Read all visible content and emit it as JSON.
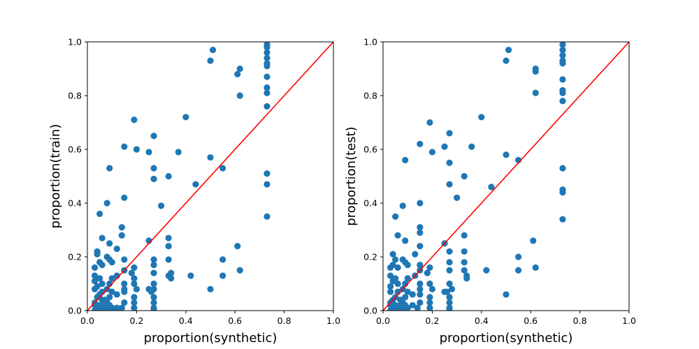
{
  "chart_data": [
    {
      "type": "scatter",
      "xlabel": "proportion(synthetic)",
      "ylabel": "proportion(train)",
      "xlim": [
        0,
        1
      ],
      "ylim": [
        0,
        1
      ],
      "xticks": [
        "0.0",
        "0.2",
        "0.4",
        "0.6",
        "0.8",
        "1.0"
      ],
      "yticks": [
        "0.0",
        "0.2",
        "0.4",
        "0.6",
        "0.8",
        "1.0"
      ],
      "grid": false,
      "reference_line": {
        "from": [
          0,
          0
        ],
        "to": [
          1,
          1
        ],
        "color": "#ff0000"
      },
      "marker_color": "#1f77b4",
      "points": [
        [
          0.73,
          0.99
        ],
        [
          0.73,
          0.98
        ],
        [
          0.73,
          0.96
        ],
        [
          0.73,
          0.94
        ],
        [
          0.73,
          0.92
        ],
        [
          0.73,
          0.91
        ],
        [
          0.73,
          0.87
        ],
        [
          0.73,
          0.83
        ],
        [
          0.73,
          0.81
        ],
        [
          0.73,
          0.76
        ],
        [
          0.73,
          0.51
        ],
        [
          0.73,
          0.47
        ],
        [
          0.73,
          0.35
        ],
        [
          0.51,
          0.97
        ],
        [
          0.5,
          0.93
        ],
        [
          0.62,
          0.9
        ],
        [
          0.61,
          0.88
        ],
        [
          0.62,
          0.8
        ],
        [
          0.19,
          0.71
        ],
        [
          0.4,
          0.72
        ],
        [
          0.27,
          0.65
        ],
        [
          0.15,
          0.61
        ],
        [
          0.2,
          0.6
        ],
        [
          0.25,
          0.59
        ],
        [
          0.37,
          0.59
        ],
        [
          0.5,
          0.57
        ],
        [
          0.09,
          0.53
        ],
        [
          0.27,
          0.53
        ],
        [
          0.55,
          0.53
        ],
        [
          0.27,
          0.49
        ],
        [
          0.33,
          0.5
        ],
        [
          0.44,
          0.47
        ],
        [
          0.15,
          0.42
        ],
        [
          0.08,
          0.4
        ],
        [
          0.3,
          0.39
        ],
        [
          0.05,
          0.36
        ],
        [
          0.14,
          0.31
        ],
        [
          0.14,
          0.28
        ],
        [
          0.06,
          0.27
        ],
        [
          0.09,
          0.25
        ],
        [
          0.25,
          0.26
        ],
        [
          0.33,
          0.27
        ],
        [
          0.33,
          0.24
        ],
        [
          0.61,
          0.24
        ],
        [
          0.12,
          0.23
        ],
        [
          0.04,
          0.22
        ],
        [
          0.04,
          0.21
        ],
        [
          0.08,
          0.2
        ],
        [
          0.09,
          0.19
        ],
        [
          0.05,
          0.18
        ],
        [
          0.15,
          0.19
        ],
        [
          0.27,
          0.19
        ],
        [
          0.33,
          0.19
        ],
        [
          0.55,
          0.19
        ],
        [
          0.06,
          0.17
        ],
        [
          0.1,
          0.18
        ],
        [
          0.27,
          0.17
        ],
        [
          0.03,
          0.16
        ],
        [
          0.19,
          0.16
        ],
        [
          0.15,
          0.15
        ],
        [
          0.18,
          0.14
        ],
        [
          0.27,
          0.14
        ],
        [
          0.33,
          0.13
        ],
        [
          0.34,
          0.14
        ],
        [
          0.34,
          0.12
        ],
        [
          0.42,
          0.13
        ],
        [
          0.62,
          0.15
        ],
        [
          0.55,
          0.13
        ],
        [
          0.03,
          0.13
        ],
        [
          0.05,
          0.12
        ],
        [
          0.1,
          0.12
        ],
        [
          0.12,
          0.13
        ],
        [
          0.19,
          0.12
        ],
        [
          0.03,
          0.11
        ],
        [
          0.06,
          0.1
        ],
        [
          0.09,
          0.1
        ],
        [
          0.15,
          0.1
        ],
        [
          0.19,
          0.1
        ],
        [
          0.27,
          0.1
        ],
        [
          0.04,
          0.09
        ],
        [
          0.08,
          0.08
        ],
        [
          0.15,
          0.08
        ],
        [
          0.2,
          0.08
        ],
        [
          0.25,
          0.08
        ],
        [
          0.27,
          0.08
        ],
        [
          0.26,
          0.07
        ],
        [
          0.5,
          0.08
        ],
        [
          0.03,
          0.08
        ],
        [
          0.06,
          0.07
        ],
        [
          0.1,
          0.07
        ],
        [
          0.15,
          0.07
        ],
        [
          0.05,
          0.06
        ],
        [
          0.12,
          0.06
        ],
        [
          0.09,
          0.05
        ],
        [
          0.19,
          0.05
        ],
        [
          0.27,
          0.05
        ],
        [
          0.04,
          0.05
        ],
        [
          0.06,
          0.04
        ],
        [
          0.07,
          0.04
        ],
        [
          0.08,
          0.03
        ],
        [
          0.03,
          0.03
        ],
        [
          0.15,
          0.03
        ],
        [
          0.19,
          0.03
        ],
        [
          0.27,
          0.03
        ],
        [
          0.03,
          0.02
        ],
        [
          0.05,
          0.02
        ],
        [
          0.07,
          0.02
        ],
        [
          0.09,
          0.02
        ],
        [
          0.12,
          0.01
        ],
        [
          0.14,
          0.01
        ],
        [
          0.04,
          0.01
        ],
        [
          0.06,
          0.01
        ],
        [
          0.08,
          0.01
        ],
        [
          0.1,
          0.01
        ],
        [
          0.19,
          0.01
        ],
        [
          0.27,
          0.01
        ],
        [
          0.03,
          0.0
        ],
        [
          0.05,
          0.0
        ],
        [
          0.07,
          0.0
        ],
        [
          0.09,
          0.0
        ],
        [
          0.27,
          0.0
        ]
      ]
    },
    {
      "type": "scatter",
      "xlabel": "proportion(synthetic)",
      "ylabel": "proportion(test)",
      "xlim": [
        0,
        1
      ],
      "ylim": [
        0,
        1
      ],
      "xticks": [
        "0.0",
        "0.2",
        "0.4",
        "0.6",
        "0.8",
        "1.0"
      ],
      "yticks": [
        "0.0",
        "0.2",
        "0.4",
        "0.6",
        "0.8",
        "1.0"
      ],
      "grid": false,
      "reference_line": {
        "from": [
          0,
          0
        ],
        "to": [
          1,
          1
        ],
        "color": "#ff0000"
      },
      "marker_color": "#1f77b4",
      "points": [
        [
          0.73,
          0.99
        ],
        [
          0.73,
          0.97
        ],
        [
          0.73,
          0.95
        ],
        [
          0.73,
          0.93
        ],
        [
          0.73,
          0.92
        ],
        [
          0.73,
          0.86
        ],
        [
          0.73,
          0.82
        ],
        [
          0.73,
          0.81
        ],
        [
          0.73,
          0.78
        ],
        [
          0.73,
          0.53
        ],
        [
          0.73,
          0.45
        ],
        [
          0.73,
          0.44
        ],
        [
          0.73,
          0.34
        ],
        [
          0.51,
          0.97
        ],
        [
          0.5,
          0.93
        ],
        [
          0.62,
          0.9
        ],
        [
          0.62,
          0.89
        ],
        [
          0.62,
          0.81
        ],
        [
          0.19,
          0.7
        ],
        [
          0.4,
          0.72
        ],
        [
          0.27,
          0.66
        ],
        [
          0.15,
          0.62
        ],
        [
          0.25,
          0.61
        ],
        [
          0.36,
          0.61
        ],
        [
          0.2,
          0.59
        ],
        [
          0.5,
          0.58
        ],
        [
          0.09,
          0.56
        ],
        [
          0.27,
          0.55
        ],
        [
          0.55,
          0.56
        ],
        [
          0.27,
          0.47
        ],
        [
          0.33,
          0.5
        ],
        [
          0.44,
          0.46
        ],
        [
          0.3,
          0.42
        ],
        [
          0.15,
          0.4
        ],
        [
          0.08,
          0.39
        ],
        [
          0.05,
          0.35
        ],
        [
          0.15,
          0.31
        ],
        [
          0.15,
          0.29
        ],
        [
          0.06,
          0.28
        ],
        [
          0.33,
          0.28
        ],
        [
          0.09,
          0.26
        ],
        [
          0.25,
          0.25
        ],
        [
          0.61,
          0.26
        ],
        [
          0.15,
          0.24
        ],
        [
          0.27,
          0.22
        ],
        [
          0.33,
          0.22
        ],
        [
          0.13,
          0.21
        ],
        [
          0.04,
          0.21
        ],
        [
          0.05,
          0.19
        ],
        [
          0.08,
          0.19
        ],
        [
          0.09,
          0.18
        ],
        [
          0.55,
          0.2
        ],
        [
          0.27,
          0.18
        ],
        [
          0.33,
          0.18
        ],
        [
          0.04,
          0.17
        ],
        [
          0.06,
          0.16
        ],
        [
          0.1,
          0.17
        ],
        [
          0.15,
          0.17
        ],
        [
          0.03,
          0.16
        ],
        [
          0.19,
          0.16
        ],
        [
          0.15,
          0.15
        ],
        [
          0.27,
          0.15
        ],
        [
          0.33,
          0.15
        ],
        [
          0.42,
          0.15
        ],
        [
          0.62,
          0.16
        ],
        [
          0.55,
          0.15
        ],
        [
          0.18,
          0.14
        ],
        [
          0.34,
          0.13
        ],
        [
          0.03,
          0.13
        ],
        [
          0.05,
          0.12
        ],
        [
          0.1,
          0.12
        ],
        [
          0.13,
          0.13
        ],
        [
          0.34,
          0.12
        ],
        [
          0.04,
          0.11
        ],
        [
          0.06,
          0.1
        ],
        [
          0.09,
          0.1
        ],
        [
          0.15,
          0.1
        ],
        [
          0.19,
          0.1
        ],
        [
          0.27,
          0.1
        ],
        [
          0.03,
          0.09
        ],
        [
          0.08,
          0.08
        ],
        [
          0.15,
          0.08
        ],
        [
          0.2,
          0.08
        ],
        [
          0.25,
          0.07
        ],
        [
          0.26,
          0.07
        ],
        [
          0.28,
          0.08
        ],
        [
          0.5,
          0.06
        ],
        [
          0.03,
          0.07
        ],
        [
          0.06,
          0.07
        ],
        [
          0.1,
          0.07
        ],
        [
          0.12,
          0.06
        ],
        [
          0.15,
          0.06
        ],
        [
          0.05,
          0.05
        ],
        [
          0.09,
          0.05
        ],
        [
          0.19,
          0.05
        ],
        [
          0.27,
          0.05
        ],
        [
          0.04,
          0.04
        ],
        [
          0.07,
          0.04
        ],
        [
          0.08,
          0.03
        ],
        [
          0.03,
          0.03
        ],
        [
          0.15,
          0.03
        ],
        [
          0.19,
          0.03
        ],
        [
          0.27,
          0.03
        ],
        [
          0.03,
          0.02
        ],
        [
          0.05,
          0.02
        ],
        [
          0.07,
          0.02
        ],
        [
          0.09,
          0.02
        ],
        [
          0.12,
          0.02
        ],
        [
          0.14,
          0.01
        ],
        [
          0.04,
          0.01
        ],
        [
          0.06,
          0.01
        ],
        [
          0.08,
          0.01
        ],
        [
          0.1,
          0.01
        ],
        [
          0.19,
          0.01
        ],
        [
          0.27,
          0.01
        ],
        [
          0.03,
          0.0
        ],
        [
          0.05,
          0.0
        ],
        [
          0.07,
          0.0
        ],
        [
          0.09,
          0.0
        ],
        [
          0.27,
          0.0
        ]
      ]
    }
  ]
}
